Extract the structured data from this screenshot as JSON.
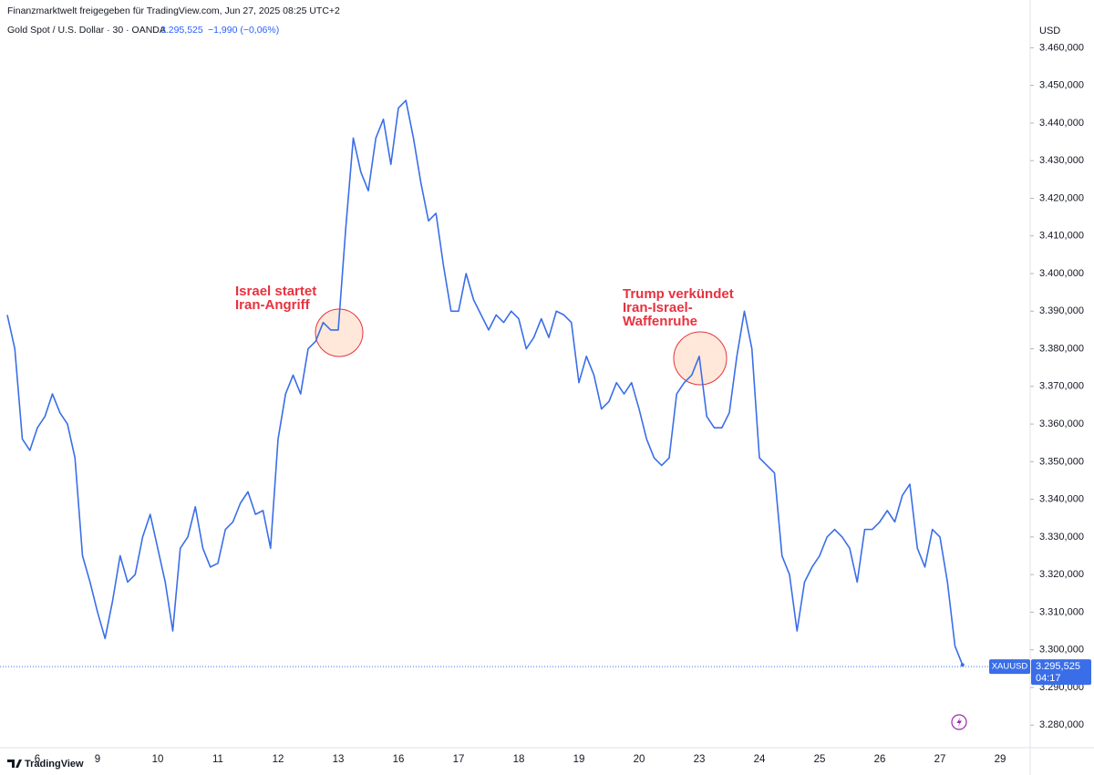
{
  "header": {
    "source": "Finanzmarktwelt freigegeben für TradingView.com, Jun 27, 2025 08:25 UTC+2",
    "symbol": "Gold Spot / U.S. Dollar · 30 · OANDA",
    "last": "3.295,525",
    "change": "−1,990 (−0,06%)"
  },
  "chart_data": {
    "type": "line",
    "y_axis_unit": "USD",
    "categories": [
      null,
      null,
      null,
      null,
      "6",
      null,
      null,
      null,
      null,
      null,
      null,
      null,
      "9",
      null,
      null,
      null,
      null,
      null,
      null,
      null,
      "10",
      null,
      null,
      null,
      null,
      null,
      null,
      null,
      "11",
      null,
      null,
      null,
      null,
      null,
      null,
      null,
      "12",
      null,
      null,
      null,
      null,
      null,
      null,
      null,
      "13",
      null,
      null,
      null,
      null,
      null,
      null,
      null,
      "16",
      null,
      null,
      null,
      null,
      null,
      null,
      null,
      "17",
      null,
      null,
      null,
      null,
      null,
      null,
      null,
      "18",
      null,
      null,
      null,
      null,
      null,
      null,
      null,
      "19",
      null,
      null,
      null,
      null,
      null,
      null,
      null,
      "20",
      null,
      null,
      null,
      null,
      null,
      null,
      null,
      "23",
      null,
      null,
      null,
      null,
      null,
      null,
      null,
      "24",
      null,
      null,
      null,
      null,
      null,
      null,
      null,
      "25",
      null,
      null,
      null,
      null,
      null,
      null,
      null,
      "26",
      null,
      null,
      null,
      null,
      null,
      null,
      null,
      "27",
      null,
      null,
      null,
      null,
      null,
      null,
      null,
      "29"
    ],
    "series": [
      {
        "name": "XAUUSD",
        "color": "#3a6ee8",
        "values": [
          3389,
          3380,
          3356,
          3353,
          3359,
          3362,
          3368,
          3363,
          3360,
          3351,
          3325,
          3318,
          3310,
          3303,
          3313,
          3325,
          3318,
          3320,
          3330,
          3336,
          3327,
          3318,
          3305,
          3327,
          3330,
          3338,
          3327,
          3322,
          3323,
          3332,
          3334,
          3339,
          3342,
          3336,
          3337,
          3327,
          3356,
          3368,
          3373,
          3368,
          3380,
          3382,
          3387,
          3385,
          3385,
          3412,
          3436,
          3427,
          3422,
          3436,
          3441,
          3429,
          3444,
          3446,
          3436,
          3424,
          3414,
          3416,
          3402,
          3390,
          3390,
          3400,
          3393,
          3389,
          3385,
          3389,
          3387,
          3390,
          3388,
          3380,
          3383,
          3388,
          3383,
          3390,
          3389,
          3387,
          3371,
          3378,
          3373,
          3364,
          3366,
          3371,
          3368,
          3371,
          3364,
          3356,
          3351,
          3349,
          3351,
          3368,
          3371,
          3373,
          3378,
          3362,
          3359,
          3359,
          3363,
          3378,
          3390,
          3380,
          3351,
          3349,
          3347,
          3325,
          3320,
          3305,
          3318,
          3322,
          3325,
          3330,
          3332,
          3330,
          3327,
          3318,
          3332,
          3332,
          3334,
          3337,
          3334,
          3341,
          3344,
          3327,
          3322,
          3332,
          3330,
          3318,
          3301,
          3296,
          null,
          null,
          null,
          null,
          null
        ]
      }
    ],
    "last_price": {
      "value": 3295.525,
      "label": "3.295,525",
      "symbol": "XAUUSD",
      "countdown": "04:17"
    },
    "ylim": [
      3274,
      3463
    ],
    "yticks": [
      {
        "value": 3280,
        "label": "3.280,000"
      },
      {
        "value": 3290,
        "label": "3.290,000"
      },
      {
        "value": 3300,
        "label": "3.300,000"
      },
      {
        "value": 3310,
        "label": "3.310,000"
      },
      {
        "value": 3320,
        "label": "3.320,000"
      },
      {
        "value": 3330,
        "label": "3.330,000"
      },
      {
        "value": 3340,
        "label": "3.340,000"
      },
      {
        "value": 3350,
        "label": "3.350,000"
      },
      {
        "value": 3360,
        "label": "3.360,000"
      },
      {
        "value": 3370,
        "label": "3.370,000"
      },
      {
        "value": 3380,
        "label": "3.380,000"
      },
      {
        "value": 3390,
        "label": "3.390,000"
      },
      {
        "value": 3400,
        "label": "3.400,000"
      },
      {
        "value": 3410,
        "label": "3.410,000"
      },
      {
        "value": 3420,
        "label": "3.420,000"
      },
      {
        "value": 3430,
        "label": "3.430,000"
      },
      {
        "value": 3440,
        "label": "3.440,000"
      },
      {
        "value": 3450,
        "label": "3.450,000"
      },
      {
        "value": 3460,
        "label": "3.460,000"
      }
    ],
    "grid": false,
    "annotations": [
      {
        "lines": [
          "Israel startet",
          "Iran-Angriff"
        ]
      },
      {
        "lines": [
          "Trump verkündet",
          "Iran-Israel-",
          "Waffenruhe"
        ]
      }
    ]
  },
  "footer": {
    "brand": "TradingView"
  }
}
